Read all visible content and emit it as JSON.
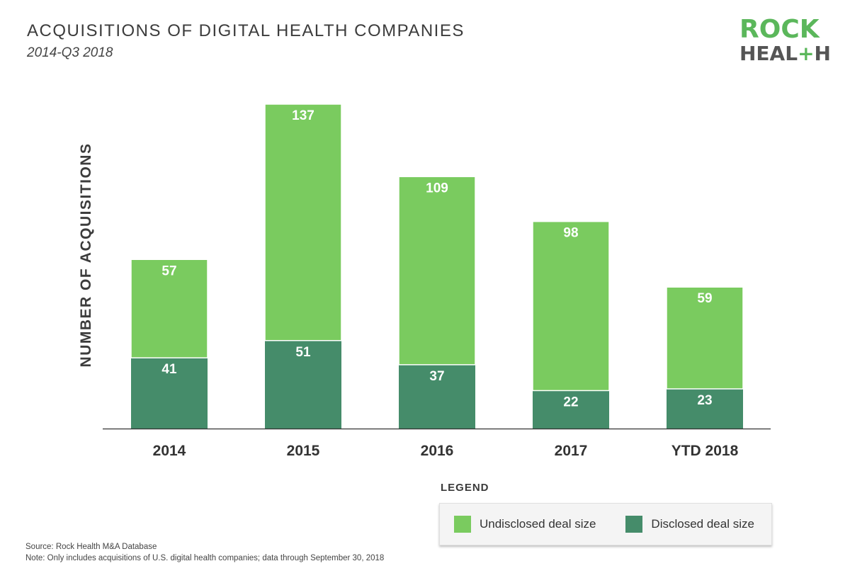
{
  "header": {
    "title": "ACQUISITIONS OF DIGITAL HEALTH COMPANIES",
    "subtitle": "2014-Q3 2018"
  },
  "logo": {
    "line1": "ROCK",
    "line2_pre": "HEAL",
    "line2_plus": "+",
    "line2_post": "H"
  },
  "colors": {
    "undisclosed": "#7acb5f",
    "disclosed": "#458c6a"
  },
  "chart_data": {
    "type": "bar",
    "stacked": true,
    "title": "ACQUISITIONS OF DIGITAL HEALTH COMPANIES",
    "subtitle": "2014-Q3 2018",
    "xlabel": "",
    "ylabel": "NUMBER OF ACQUISITIONS",
    "categories": [
      "2014",
      "2015",
      "2016",
      "2017",
      "YTD 2018"
    ],
    "series": [
      {
        "name": "Disclosed deal size",
        "values": [
          41,
          51,
          37,
          22,
          23
        ]
      },
      {
        "name": "Undisclosed deal size",
        "values": [
          57,
          137,
          109,
          98,
          59
        ]
      }
    ],
    "ylim": [
      0,
      188
    ],
    "grid": false,
    "legend": "bottom-right"
  },
  "legend": {
    "heading": "LEGEND",
    "items": [
      {
        "label": "Undisclosed deal size",
        "color": "#7acb5f"
      },
      {
        "label": "Disclosed deal size",
        "color": "#458c6a"
      }
    ]
  },
  "footer": {
    "source": "Source: Rock Health M&A Database",
    "note": "Note: Only includes acquisitions of U.S. digital health companies; data through September 30, 2018"
  }
}
